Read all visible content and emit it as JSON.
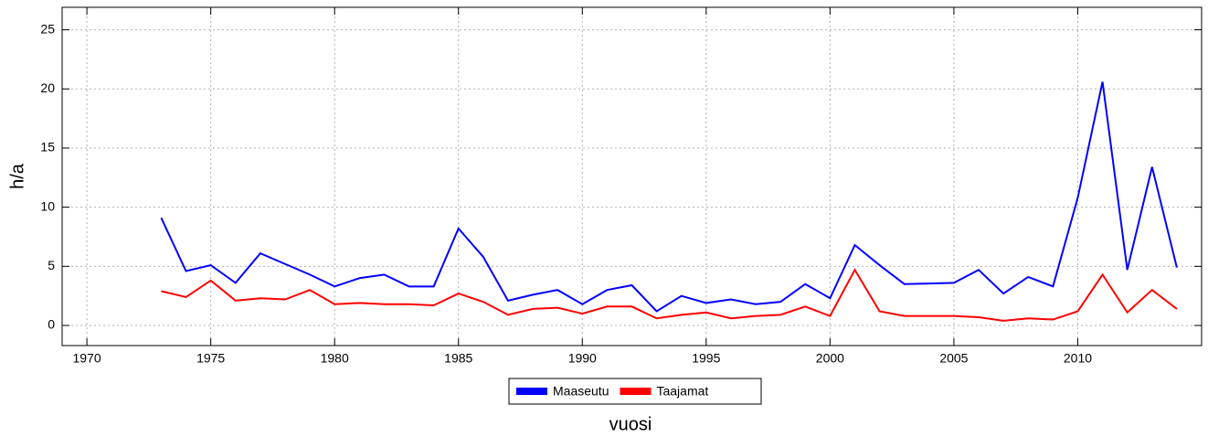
{
  "chart_data": {
    "type": "line",
    "x": [
      1973,
      1974,
      1975,
      1976,
      1977,
      1978,
      1979,
      1980,
      1981,
      1982,
      1983,
      1984,
      1985,
      1986,
      1987,
      1988,
      1989,
      1990,
      1991,
      1992,
      1993,
      1994,
      1995,
      1996,
      1997,
      1998,
      1999,
      2000,
      2001,
      2002,
      2003,
      2004,
      2005,
      2006,
      2007,
      2008,
      2009,
      2010,
      2011,
      2012,
      2013,
      2014
    ],
    "series": [
      {
        "name": "Maaseutu",
        "color": "#0000ff",
        "values": [
          9.1,
          4.6,
          5.1,
          3.6,
          6.1,
          5.2,
          4.3,
          3.3,
          4.0,
          4.3,
          3.3,
          3.3,
          8.2,
          5.8,
          2.1,
          2.6,
          3.0,
          1.8,
          3.0,
          3.4,
          1.2,
          2.5,
          1.9,
          2.2,
          1.8,
          2.0,
          3.5,
          2.3,
          6.8,
          5.1,
          3.5,
          3.55,
          3.6,
          4.7,
          2.7,
          4.1,
          3.3,
          10.8,
          20.6,
          4.7,
          13.4,
          4.9
        ]
      },
      {
        "name": "Taajamat",
        "color": "#ff0000",
        "values": [
          2.9,
          2.4,
          3.8,
          2.1,
          2.3,
          2.2,
          3.0,
          1.8,
          1.9,
          1.8,
          1.8,
          1.7,
          2.7,
          2.0,
          0.9,
          1.4,
          1.5,
          1.0,
          1.6,
          1.6,
          0.6,
          0.9,
          1.1,
          0.6,
          0.8,
          0.9,
          1.6,
          0.8,
          4.7,
          1.2,
          0.8,
          0.8,
          0.8,
          0.7,
          0.4,
          0.6,
          0.5,
          1.2,
          4.3,
          1.1,
          3.0,
          1.4
        ]
      }
    ],
    "xlabel": "vuosi",
    "ylabel": "h/a",
    "xlim": [
      1969,
      2015
    ],
    "xticks": [
      1970,
      1975,
      1980,
      1985,
      1990,
      1995,
      2000,
      2005,
      2010
    ],
    "ylim": [
      -1.7,
      26.9
    ],
    "yticks": [
      0,
      5,
      10,
      15,
      20,
      25
    ],
    "grid": true,
    "legend": "bottom"
  }
}
